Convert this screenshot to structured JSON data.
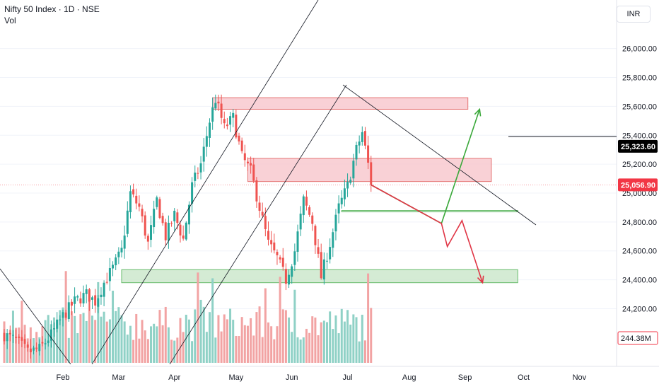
{
  "header": {
    "symbol_line": "Nifty 50 Index · 1D · NSE",
    "indicator": "Vol",
    "currency": "INR"
  },
  "colors": {
    "up": "#26a69a",
    "down": "#ef5350",
    "vol_up": "#8fd1c6",
    "vol_down": "#f2a3a3",
    "resistance_zone": "#f8c9cf",
    "support_zone": "#cde8cc",
    "projection_up": "#3aa83a",
    "projection_down": "#e03545",
    "last_price_tag": "#f23645",
    "marker_tag": "#000000"
  },
  "chart_data": {
    "type": "candlestick",
    "instrument": "Nifty 50 Index",
    "interval": "1D",
    "exchange": "NSE",
    "ylim": [
      23850,
      26150
    ],
    "y_ticks": [
      "26,000.00",
      "25,800.00",
      "25,600.00",
      "25,400.00",
      "25,200.00",
      "25,000.00",
      "24,800.00",
      "24,600.00",
      "24,400.00",
      "24,200.00"
    ],
    "y_tick_values": [
      26000,
      25800,
      25600,
      25400,
      25200,
      25000,
      24800,
      24600,
      24400,
      24200
    ],
    "x_ticks": [
      "Feb",
      "Mar",
      "Apr",
      "May",
      "Jun",
      "Jul",
      "Aug",
      "Sep",
      "Oct",
      "Nov"
    ],
    "last_price": "25,056.90",
    "last_price_value": 25056.9,
    "marker_price": "25,323.60",
    "marker_price_value": 25323.6,
    "volume_label": "244.38M",
    "swing_path": [
      [
        0,
        24020
      ],
      [
        4,
        23980
      ],
      [
        8,
        23900
      ],
      [
        12,
        23920
      ],
      [
        16,
        24020
      ],
      [
        20,
        24150
      ],
      [
        24,
        24250
      ],
      [
        28,
        24300
      ],
      [
        31,
        24250
      ],
      [
        34,
        24380
      ],
      [
        37,
        24480
      ],
      [
        40,
        24600
      ],
      [
        43,
        25000
      ],
      [
        46,
        24900
      ],
      [
        49,
        24650
      ],
      [
        52,
        24950
      ],
      [
        55,
        24700
      ],
      [
        58,
        24850
      ],
      [
        61,
        24680
      ],
      [
        64,
        25050
      ],
      [
        67,
        25200
      ],
      [
        70,
        25500
      ],
      [
        72,
        25650
      ],
      [
        75,
        25450
      ],
      [
        78,
        25520
      ],
      [
        81,
        25250
      ],
      [
        84,
        25150
      ],
      [
        87,
        24900
      ],
      [
        90,
        24650
      ],
      [
        93,
        24550
      ],
      [
        96,
        24400
      ],
      [
        99,
        24600
      ],
      [
        102,
        24950
      ],
      [
        105,
        24800
      ],
      [
        108,
        24420
      ],
      [
        111,
        24650
      ],
      [
        114,
        24900
      ],
      [
        117,
        25050
      ],
      [
        120,
        25300
      ],
      [
        122,
        25420
      ],
      [
        124,
        25200
      ],
      [
        125,
        25060
      ]
    ],
    "resistance_zones": [
      {
        "from_bar": 71,
        "to_bar": 158,
        "low": 25580,
        "high": 25660
      },
      {
        "from_bar": 83,
        "to_bar": 166,
        "low": 25080,
        "high": 25240
      }
    ],
    "support_zones": [
      {
        "from_bar": 40,
        "to_bar": 175,
        "low": 24380,
        "high": 24470
      },
      {
        "from_bar": 115,
        "to_bar": 175,
        "low": 24870,
        "high": 24880
      }
    ],
    "bullish_projection": [
      [
        125,
        25056.9
      ],
      [
        149,
        24790
      ],
      [
        162,
        25580
      ]
    ],
    "bearish_projection": [
      [
        125,
        25056.9
      ],
      [
        149,
        24790
      ],
      [
        151,
        24630
      ],
      [
        156,
        24810
      ],
      [
        163,
        24380
      ]
    ]
  }
}
